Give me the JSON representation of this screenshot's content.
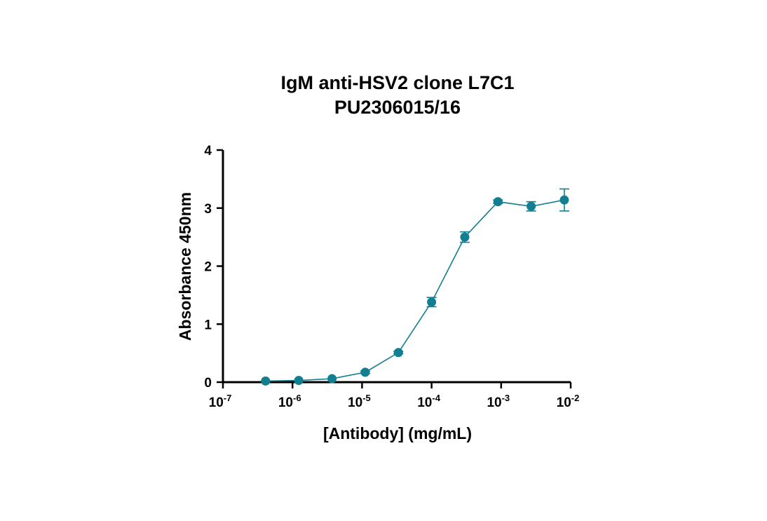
{
  "chart_data": {
    "type": "scatter",
    "title": "IgM anti-HSV2 clone L7C1",
    "subtitle": "PU2306015/16",
    "xlabel": "[Antibody] (mg/mL)",
    "ylabel": "Absorbance 450nm",
    "x_scale": "log",
    "xlim": [
      1e-07,
      0.01
    ],
    "ylim": [
      0,
      4
    ],
    "x_ticks": [
      {
        "base": "10",
        "exp": "-7"
      },
      {
        "base": "10",
        "exp": "-6"
      },
      {
        "base": "10",
        "exp": "-5"
      },
      {
        "base": "10",
        "exp": "-4"
      },
      {
        "base": "10",
        "exp": "-3"
      },
      {
        "base": "10",
        "exp": "-2"
      }
    ],
    "y_ticks": [
      "0",
      "1",
      "2",
      "3",
      "4"
    ],
    "grid": false,
    "legend": "none",
    "color": "#127f91",
    "series": [
      {
        "x": [
          4.1e-07,
          1.23e-06,
          3.7e-06,
          1.11e-05,
          3.33e-05,
          0.0001,
          0.0003,
          0.0009,
          0.0027,
          0.0081
        ],
        "y": [
          0.02,
          0.03,
          0.06,
          0.17,
          0.51,
          1.38,
          2.5,
          3.11,
          3.03,
          3.14
        ],
        "error": [
          0.01,
          0.01,
          0.01,
          0.02,
          0.02,
          0.08,
          0.09,
          0.03,
          0.08,
          0.19
        ]
      }
    ]
  }
}
